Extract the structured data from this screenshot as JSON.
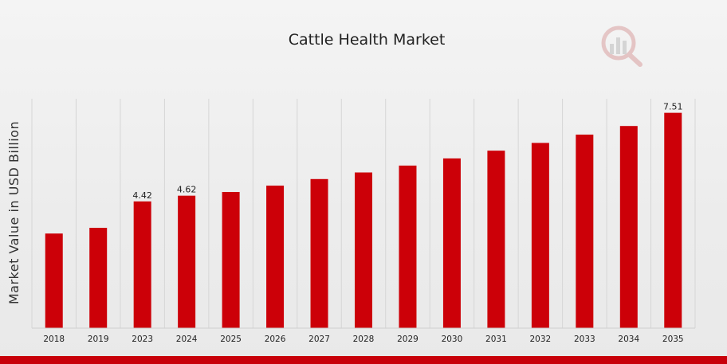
{
  "colors": {
    "bar": "#cc0008",
    "gridline": "#d6d6d6",
    "background": "#efefef",
    "accent_bar": "#c8000a",
    "logo": "#d9a5a5"
  },
  "logo": {
    "icon": "magnifier-bar-chart-logo-icon"
  },
  "chart_data": {
    "type": "bar",
    "title": "Cattle Health Market",
    "xlabel": "",
    "ylabel": "Market Value in USD Billion",
    "ylim": [
      0,
      8.0
    ],
    "grid": {
      "vertical": true,
      "horizontal": false
    },
    "legend": "none",
    "categories": [
      "2018",
      "2019",
      "2023",
      "2024",
      "2025",
      "2026",
      "2027",
      "2028",
      "2029",
      "2030",
      "2031",
      "2032",
      "2033",
      "2034",
      "2035"
    ],
    "values": [
      3.3,
      3.5,
      4.42,
      4.62,
      4.75,
      4.97,
      5.2,
      5.43,
      5.67,
      5.92,
      6.19,
      6.46,
      6.75,
      7.05,
      7.51
    ],
    "data_labels": [
      {
        "index": 2,
        "text": "4.42"
      },
      {
        "index": 3,
        "text": "4.62"
      },
      {
        "index": 14,
        "text": "7.51"
      }
    ]
  }
}
